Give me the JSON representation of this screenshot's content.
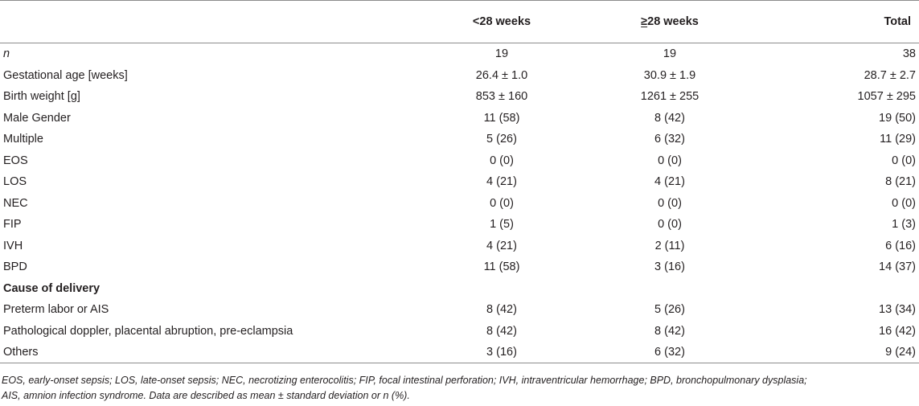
{
  "header": {
    "col0": "",
    "col1": "<28 weeks",
    "col2_symbol": "≥",
    "col2_rest": "28 weeks",
    "col3": "Total"
  },
  "rows": [
    {
      "label": "n",
      "c1": "19",
      "c2": "19",
      "c3": "38"
    },
    {
      "label": "Gestational age [weeks]",
      "c1": "26.4 ± 1.0",
      "c2": "30.9 ± 1.9",
      "c3": "28.7 ± 2.7"
    },
    {
      "label": "Birth weight [g]",
      "c1": "853 ± 160",
      "c2": "1261 ± 255",
      "c3": "1057 ± 295"
    },
    {
      "label": "Male Gender",
      "c1": "11 (58)",
      "c2": "8 (42)",
      "c3": "19 (50)"
    },
    {
      "label": "Multiple",
      "c1": "5 (26)",
      "c2": "6 (32)",
      "c3": "11 (29)"
    },
    {
      "label": "EOS",
      "c1": "0 (0)",
      "c2": "0 (0)",
      "c3": "0 (0)"
    },
    {
      "label": "LOS",
      "c1": "4 (21)",
      "c2": "4 (21)",
      "c3": "8 (21)"
    },
    {
      "label": "NEC",
      "c1": "0 (0)",
      "c2": "0 (0)",
      "c3": "0 (0)"
    },
    {
      "label": "FIP",
      "c1": "1 (5)",
      "c2": "0 (0)",
      "c3": "1 (3)"
    },
    {
      "label": "IVH",
      "c1": "4 (21)",
      "c2": "2 (11)",
      "c3": "6 (16)"
    },
    {
      "label": "BPD",
      "c1": "11 (58)",
      "c2": "3 (16)",
      "c3": "14 (37)"
    },
    {
      "label": "Cause of delivery",
      "c1": "",
      "c2": "",
      "c3": ""
    },
    {
      "label": "Preterm labor or AIS",
      "c1": "8 (42)",
      "c2": "5 (26)",
      "c3": "13 (34)"
    },
    {
      "label": "Pathological doppler, placental abruption, pre-eclampsia",
      "c1": "8 (42)",
      "c2": "8 (42)",
      "c3": "16 (42)"
    },
    {
      "label": "Others",
      "c1": "3 (16)",
      "c2": "6 (32)",
      "c3": "9 (24)"
    }
  ],
  "footnote": {
    "line1": "EOS, early-onset sepsis; LOS, late-onset sepsis; NEC, necrotizing enterocolitis; FIP, focal intestinal perforation; IVH, intraventricular hemorrhage; BPD, bronchopulmonary dysplasia;",
    "line2": "AIS, amnion infection syndrome. Data are described as mean ± standard deviation or n (%)."
  }
}
